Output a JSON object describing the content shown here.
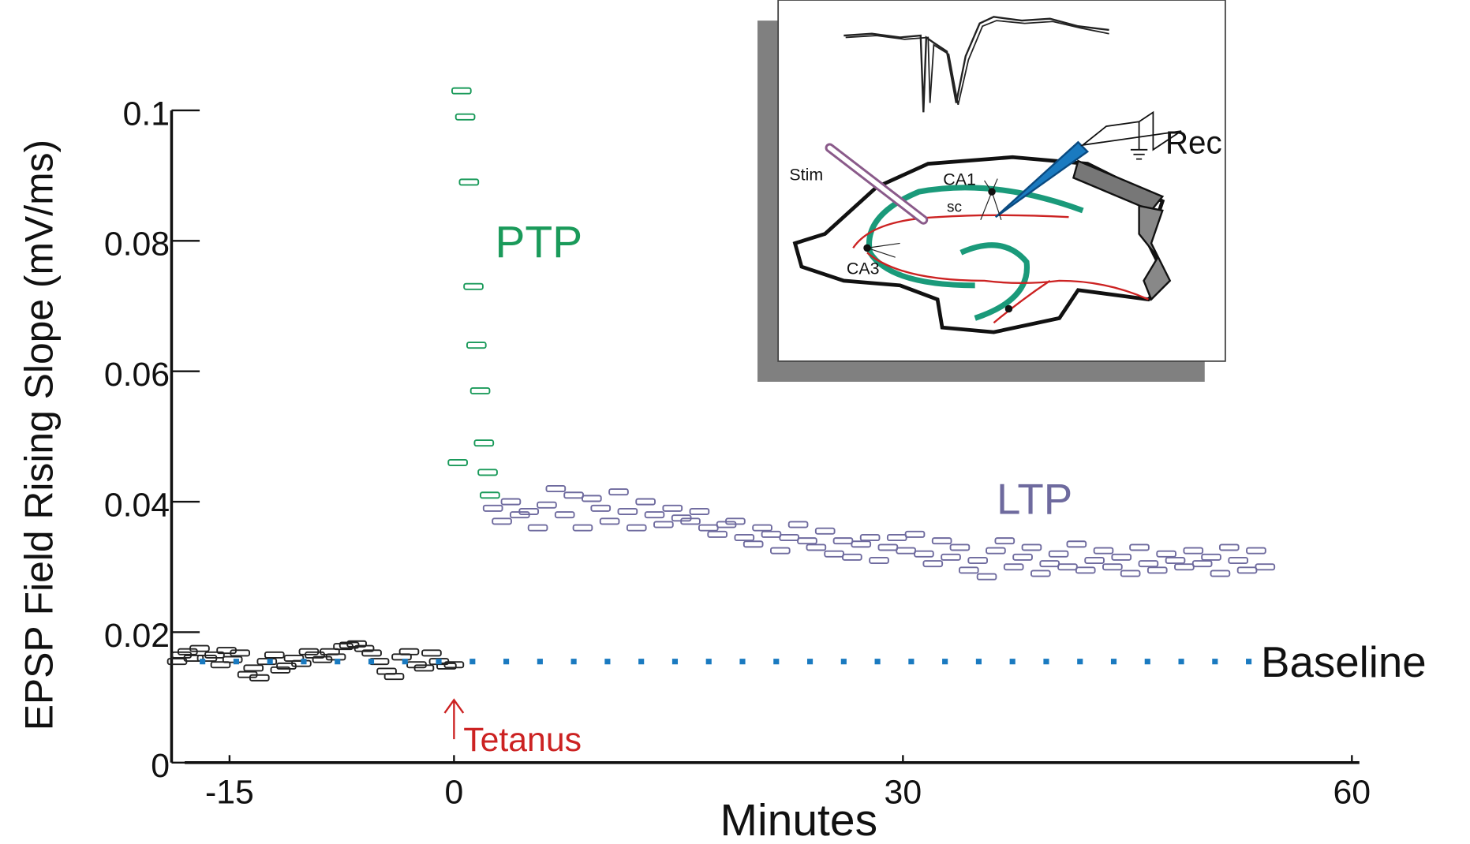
{
  "chart_data": {
    "type": "scatter",
    "y_label": "EPSP Field Rising Slope (mV/ms)",
    "x_label": "Minutes",
    "xlim": [
      -19.5,
      60.5
    ],
    "ylim": [
      0,
      0.1
    ],
    "xticks": [
      -15,
      0,
      30,
      60
    ],
    "yticks": [
      0,
      0.02,
      0.04,
      0.06,
      0.08,
      0.1
    ],
    "series": [
      {
        "color": "#222222",
        "x": [
          -18.5,
          -18.2,
          -17.8,
          -17.4,
          -17,
          -16.5,
          -16,
          -15.6,
          -15.2,
          -14.8,
          -14.3,
          -13.8,
          -13.4,
          -13,
          -12.5,
          -12,
          -11.6,
          -11.2,
          -10.7,
          -10.2,
          -9.7,
          -9.3,
          -8.8,
          -8.3,
          -7.9,
          -7.4,
          -7,
          -6.5,
          -6,
          -5.5,
          -5,
          -4.5,
          -4,
          -3.5,
          -3,
          -2.5,
          -2,
          -1.5,
          -1,
          -0.5,
          0
        ],
        "values": [
          0.0155,
          0.0165,
          0.017,
          0.016,
          0.0175,
          0.016,
          0.0165,
          0.015,
          0.0172,
          0.0158,
          0.0168,
          0.0135,
          0.0145,
          0.013,
          0.0155,
          0.0165,
          0.0142,
          0.0148,
          0.016,
          0.0152,
          0.017,
          0.0165,
          0.0158,
          0.017,
          0.0162,
          0.0178,
          0.018,
          0.0182,
          0.0175,
          0.0168,
          0.0155,
          0.014,
          0.0132,
          0.0162,
          0.017,
          0.015,
          0.0145,
          0.0168,
          0.0155,
          0.0148,
          0.015
        ]
      },
      {
        "name": "PTP",
        "color": "#1a9a5a",
        "x": [
          0.25,
          0.5,
          0.75,
          1.0,
          1.3,
          1.5,
          1.75,
          2.0,
          2.25,
          2.4
        ],
        "values": [
          0.046,
          0.103,
          0.099,
          0.089,
          0.073,
          0.064,
          0.057,
          0.049,
          0.0445,
          0.041
        ]
      },
      {
        "name": "LTP",
        "color": "#6e6a9e",
        "x": [
          2.6,
          3.2,
          3.8,
          4.4,
          5,
          5.6,
          6.2,
          6.8,
          7.4,
          8,
          8.6,
          9.2,
          9.8,
          10.4,
          11,
          11.6,
          12.2,
          12.8,
          13.4,
          14,
          14.6,
          15.2,
          15.8,
          16.4,
          17,
          17.6,
          18.2,
          18.8,
          19.4,
          20,
          20.6,
          21.2,
          21.8,
          22.4,
          23,
          23.6,
          24.2,
          24.8,
          25.4,
          26,
          26.6,
          27.2,
          27.8,
          28.4,
          29,
          29.6,
          30.2,
          30.8,
          31.4,
          32,
          32.6,
          33.2,
          33.8,
          34.4,
          35,
          35.6,
          36.2,
          36.8,
          37.4,
          38,
          38.6,
          39.2,
          39.8,
          40.4,
          41,
          41.6,
          42.2,
          42.8,
          43.4,
          44,
          44.6,
          45.2,
          45.8,
          46.4,
          47,
          47.6,
          48.2,
          48.8,
          49.4,
          50,
          50.6,
          51.2,
          51.8,
          52.4,
          53,
          53.6,
          54.2
        ],
        "values": [
          0.039,
          0.037,
          0.04,
          0.038,
          0.0385,
          0.036,
          0.0395,
          0.042,
          0.038,
          0.041,
          0.036,
          0.0405,
          0.039,
          0.037,
          0.0415,
          0.0385,
          0.036,
          0.04,
          0.038,
          0.0365,
          0.039,
          0.0375,
          0.037,
          0.0385,
          0.036,
          0.035,
          0.0365,
          0.037,
          0.0345,
          0.0335,
          0.036,
          0.035,
          0.0325,
          0.0345,
          0.0365,
          0.034,
          0.033,
          0.0355,
          0.032,
          0.034,
          0.0315,
          0.0335,
          0.0345,
          0.031,
          0.033,
          0.0345,
          0.0325,
          0.035,
          0.032,
          0.0305,
          0.034,
          0.0315,
          0.033,
          0.0295,
          0.031,
          0.0285,
          0.0325,
          0.034,
          0.03,
          0.0315,
          0.033,
          0.029,
          0.0305,
          0.032,
          0.03,
          0.0335,
          0.0295,
          0.031,
          0.0325,
          0.03,
          0.0315,
          0.029,
          0.033,
          0.0305,
          0.0295,
          0.032,
          0.031,
          0.03,
          0.0325,
          0.0305,
          0.0315,
          0.029,
          0.033,
          0.031,
          0.0295,
          0.0325,
          0.03
        ]
      }
    ],
    "reference_line": {
      "label": "Baseline",
      "value": 0.0155,
      "color": "#1a7ac0"
    },
    "annotation": {
      "text": "Tetanus",
      "color": "#cc2222"
    },
    "inset": {
      "labels": [
        "Stim",
        "CA1",
        "sc",
        "CA3",
        "Rec"
      ]
    }
  }
}
